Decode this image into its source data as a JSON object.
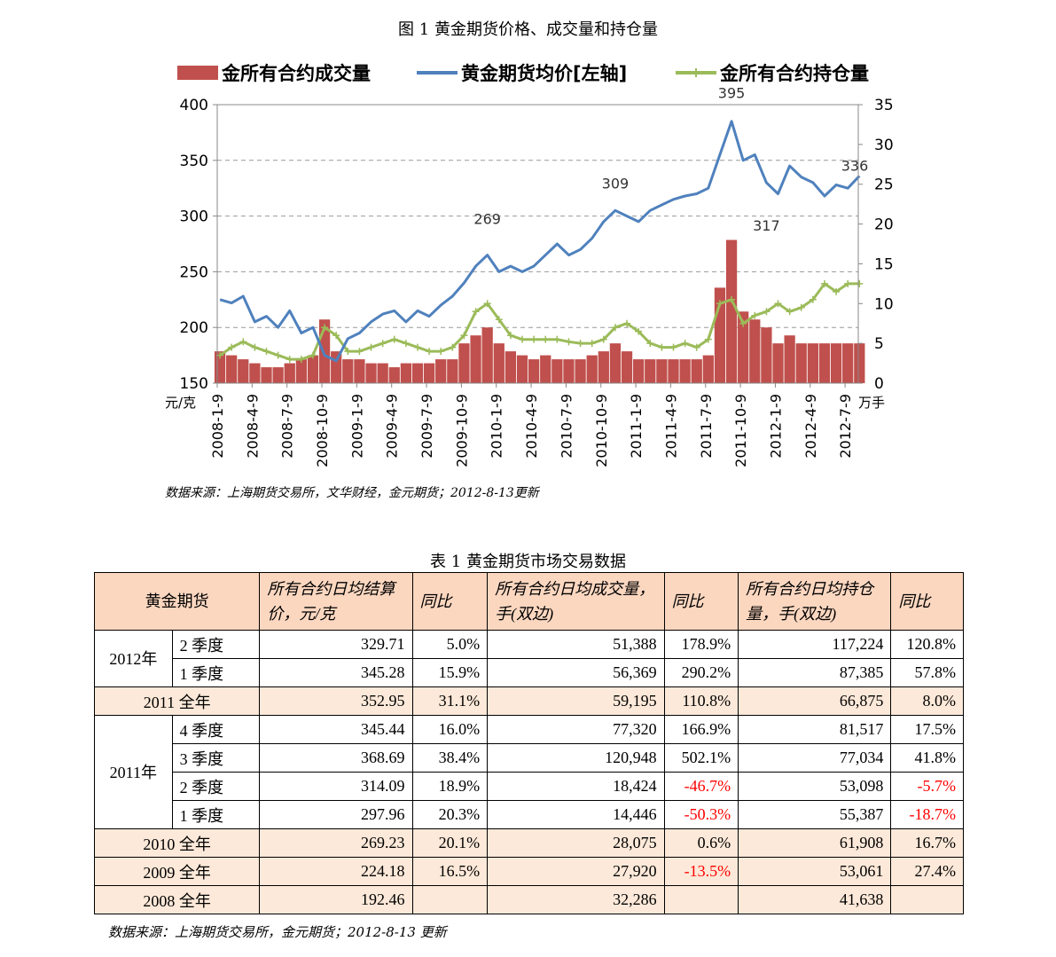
{
  "figure_title": "图 1  黄金期货价格、成交量和持仓量",
  "chart_data": {
    "type": "line",
    "legend": [
      "金所有合约成交量",
      "黄金期货均价[左轴]",
      "金所有合约持仓量"
    ],
    "legend_position": "top",
    "colors": {
      "volume": "#c0504d",
      "price": "#4f81bd",
      "open_interest": "#9bbb59"
    },
    "left_unit": "元/克",
    "right_unit": "万手",
    "left_ylim": [
      150,
      400
    ],
    "left_ticks": [
      "150",
      "200",
      "250",
      "300",
      "350",
      "400"
    ],
    "right_ylim": [
      0,
      35
    ],
    "right_ticks": [
      "0",
      "5",
      "10",
      "15",
      "20",
      "25",
      "30",
      "35"
    ],
    "grid": "horizontal dashed",
    "x_ticks": [
      "2008-1-9",
      "2008-4-9",
      "2008-7-9",
      "2008-10-9",
      "2009-1-9",
      "2009-4-9",
      "2009-7-9",
      "2009-10-9",
      "2010-1-9",
      "2010-4-9",
      "2010-7-9",
      "2010-10-9",
      "2011-1-9",
      "2011-4-9",
      "2011-7-9",
      "2011-10-9",
      "2012-1-9",
      "2012-4-9",
      "2012-7-9"
    ],
    "annotations": [
      {
        "date": "2009-12",
        "value": "269"
      },
      {
        "date": "2010-11",
        "value": "309"
      },
      {
        "date": "2011-9",
        "value": "395"
      },
      {
        "date": "2011-12",
        "value": "317"
      },
      {
        "date": "2012-8",
        "value": "336"
      }
    ],
    "series": [
      {
        "name": "黄金期货均价[左轴]",
        "axis": "left",
        "x": [
          "2008-01",
          "2008-02",
          "2008-03",
          "2008-04",
          "2008-05",
          "2008-06",
          "2008-07",
          "2008-08",
          "2008-09",
          "2008-10",
          "2008-11",
          "2008-12",
          "2009-01",
          "2009-02",
          "2009-03",
          "2009-04",
          "2009-05",
          "2009-06",
          "2009-07",
          "2009-08",
          "2009-09",
          "2009-10",
          "2009-11",
          "2009-12",
          "2010-01",
          "2010-02",
          "2010-03",
          "2010-04",
          "2010-05",
          "2010-06",
          "2010-07",
          "2010-08",
          "2010-09",
          "2010-10",
          "2010-11",
          "2010-12",
          "2011-01",
          "2011-02",
          "2011-03",
          "2011-04",
          "2011-05",
          "2011-06",
          "2011-07",
          "2011-08",
          "2011-09",
          "2011-10",
          "2011-11",
          "2011-12",
          "2012-01",
          "2012-02",
          "2012-03",
          "2012-04",
          "2012-05",
          "2012-06",
          "2012-07",
          "2012-08"
        ],
        "values": [
          225,
          222,
          228,
          205,
          210,
          200,
          215,
          195,
          200,
          175,
          170,
          190,
          195,
          205,
          212,
          215,
          205,
          215,
          210,
          220,
          228,
          240,
          255,
          265,
          250,
          255,
          250,
          255,
          265,
          275,
          265,
          270,
          280,
          295,
          305,
          300,
          295,
          305,
          310,
          315,
          318,
          320,
          325,
          355,
          385,
          350,
          355,
          330,
          320,
          345,
          335,
          330,
          318,
          328,
          325,
          336
        ]
      },
      {
        "name": "金所有合约成交量",
        "axis": "right",
        "x": [
          "2008-01",
          "2008-02",
          "2008-03",
          "2008-04",
          "2008-05",
          "2008-06",
          "2008-07",
          "2008-08",
          "2008-09",
          "2008-10",
          "2008-11",
          "2008-12",
          "2009-01",
          "2009-02",
          "2009-03",
          "2009-04",
          "2009-05",
          "2009-06",
          "2009-07",
          "2009-08",
          "2009-09",
          "2009-10",
          "2009-11",
          "2009-12",
          "2010-01",
          "2010-02",
          "2010-03",
          "2010-04",
          "2010-05",
          "2010-06",
          "2010-07",
          "2010-08",
          "2010-09",
          "2010-10",
          "2010-11",
          "2010-12",
          "2011-01",
          "2011-02",
          "2011-03",
          "2011-04",
          "2011-05",
          "2011-06",
          "2011-07",
          "2011-08",
          "2011-09",
          "2011-10",
          "2011-11",
          "2011-12",
          "2012-01",
          "2012-02",
          "2012-03",
          "2012-04",
          "2012-05",
          "2012-06",
          "2012-07",
          "2012-08"
        ],
        "values": [
          4,
          3.5,
          3,
          2.5,
          2,
          2,
          2.5,
          3,
          3.5,
          8,
          4,
          3,
          3,
          2.5,
          2.5,
          2,
          2.5,
          2.5,
          2.5,
          3,
          3,
          5,
          6,
          7,
          5,
          4,
          3.5,
          3,
          3.5,
          3,
          3,
          3,
          3.5,
          4,
          5,
          4,
          3,
          3,
          3,
          3,
          3,
          3,
          3.5,
          12,
          18,
          9,
          8,
          7,
          5,
          6,
          5,
          5,
          5,
          5,
          5,
          5
        ]
      },
      {
        "name": "金所有合约持仓量",
        "axis": "right",
        "x": [
          "2008-01",
          "2008-02",
          "2008-03",
          "2008-04",
          "2008-05",
          "2008-06",
          "2008-07",
          "2008-08",
          "2008-09",
          "2008-10",
          "2008-11",
          "2008-12",
          "2009-01",
          "2009-02",
          "2009-03",
          "2009-04",
          "2009-05",
          "2009-06",
          "2009-07",
          "2009-08",
          "2009-09",
          "2009-10",
          "2009-11",
          "2009-12",
          "2010-01",
          "2010-02",
          "2010-03",
          "2010-04",
          "2010-05",
          "2010-06",
          "2010-07",
          "2010-08",
          "2010-09",
          "2010-10",
          "2010-11",
          "2010-12",
          "2011-01",
          "2011-02",
          "2011-03",
          "2011-04",
          "2011-05",
          "2011-06",
          "2011-07",
          "2011-08",
          "2011-09",
          "2011-10",
          "2011-11",
          "2011-12",
          "2012-01",
          "2012-02",
          "2012-03",
          "2012-04",
          "2012-05",
          "2012-06",
          "2012-07",
          "2012-08"
        ],
        "values": [
          3.5,
          4.5,
          5.2,
          4.5,
          4,
          3.5,
          3,
          3,
          3.5,
          7,
          6,
          4,
          4,
          4.5,
          5,
          5.5,
          5,
          4.5,
          4,
          4,
          4.5,
          6,
          9,
          10,
          8,
          6,
          5.5,
          5.5,
          5.5,
          5.5,
          5.2,
          5,
          5,
          5.5,
          7,
          7.5,
          6.5,
          5,
          4.5,
          4.5,
          5,
          4.5,
          5.5,
          10,
          10.5,
          7.5,
          8.5,
          9,
          10,
          9,
          9.5,
          10.5,
          12.5,
          11.5,
          12.5,
          12.5
        ]
      }
    ]
  },
  "source_note_1": "数据来源：上海期货交易所，文华财经，金元期货；2012-8-13更新",
  "table_title": "表 1  黄金期货市场交易数据",
  "table": {
    "headers": [
      "黄金期货",
      "所有合约日均结算价，元/克",
      "同比",
      "所有合约日均成交量，手(双边)",
      "同比",
      "所有合约日均持仓量，手(双边)",
      "同比"
    ],
    "y2012": "2012年",
    "y2011": "2011年",
    "rows": [
      {
        "label": "2 季度",
        "price": "329.71",
        "price_yoy": "5.0%",
        "volume": "51,388",
        "volume_yoy": "178.9%",
        "oi": "117,224",
        "oi_yoy": "120.8%"
      },
      {
        "label": "1 季度",
        "price": "345.28",
        "price_yoy": "15.9%",
        "volume": "56,369",
        "volume_yoy": "290.2%",
        "oi": "87,385",
        "oi_yoy": "57.8%"
      },
      {
        "label": "2011 全年",
        "price": "352.95",
        "price_yoy": "31.1%",
        "volume": "59,195",
        "volume_yoy": "110.8%",
        "oi": "66,875",
        "oi_yoy": "8.0%"
      },
      {
        "label": "4 季度",
        "price": "345.44",
        "price_yoy": "16.0%",
        "volume": "77,320",
        "volume_yoy": "166.9%",
        "oi": "81,517",
        "oi_yoy": "17.5%"
      },
      {
        "label": "3 季度",
        "price": "368.69",
        "price_yoy": "38.4%",
        "volume": "120,948",
        "volume_yoy": "502.1%",
        "oi": "77,034",
        "oi_yoy": "41.8%"
      },
      {
        "label": "2 季度",
        "price": "314.09",
        "price_yoy": "18.9%",
        "volume": "18,424",
        "volume_yoy": "-46.7%",
        "oi": "53,098",
        "oi_yoy": "-5.7%"
      },
      {
        "label": "1 季度",
        "price": "297.96",
        "price_yoy": "20.3%",
        "volume": "14,446",
        "volume_yoy": "-50.3%",
        "oi": "55,387",
        "oi_yoy": "-18.7%"
      },
      {
        "label": "2010 全年",
        "price": "269.23",
        "price_yoy": "20.1%",
        "volume": "28,075",
        "volume_yoy": "0.6%",
        "oi": "61,908",
        "oi_yoy": "16.7%"
      },
      {
        "label": "2009 全年",
        "price": "224.18",
        "price_yoy": "16.5%",
        "volume": "27,920",
        "volume_yoy": "-13.5%",
        "oi": "53,061",
        "oi_yoy": "27.4%"
      },
      {
        "label": "2008 全年",
        "price": "192.46",
        "price_yoy": "",
        "volume": "32,286",
        "volume_yoy": "",
        "oi": "41,638",
        "oi_yoy": ""
      }
    ]
  },
  "source_note_2": "数据来源：上海期货交易所，金元期货；2012-8-13 更新"
}
